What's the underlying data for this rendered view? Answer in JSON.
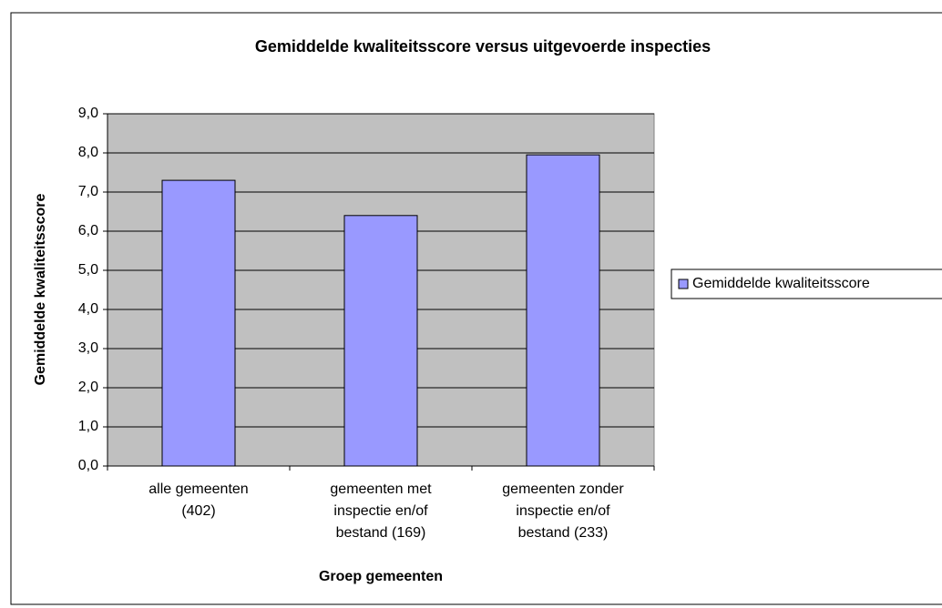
{
  "chart_data": {
    "type": "bar",
    "title": "Gemiddelde kwaliteitsscore versus uitgevoerde inspecties",
    "x_label": "Groep gemeenten",
    "y_label": "Gemiddelde kwaliteitsscore",
    "categories": [
      [
        "alle gemeenten",
        "(402)"
      ],
      [
        "gemeenten met",
        "inspectie en/of",
        "bestand (169)"
      ],
      [
        "gemeenten zonder",
        "inspectie en/of",
        "bestand (233)"
      ]
    ],
    "series": [
      {
        "name": "Gemiddelde kwaliteitsscore",
        "color": "#9999ff",
        "values": [
          7.3,
          6.4,
          7.95
        ]
      }
    ],
    "ylim": [
      0,
      9
    ],
    "yticks": [
      {
        "value": 0,
        "label": "0,0"
      },
      {
        "value": 1,
        "label": "1,0"
      },
      {
        "value": 2,
        "label": "2,0"
      },
      {
        "value": 3,
        "label": "3,0"
      },
      {
        "value": 4,
        "label": "4,0"
      },
      {
        "value": 5,
        "label": "5,0"
      },
      {
        "value": 6,
        "label": "6,0"
      },
      {
        "value": 7,
        "label": "7,0"
      },
      {
        "value": 8,
        "label": "8,0"
      },
      {
        "value": 9,
        "label": "9,0"
      }
    ],
    "grid": true,
    "plot_background": "#c0c0c0",
    "legend": "right"
  }
}
